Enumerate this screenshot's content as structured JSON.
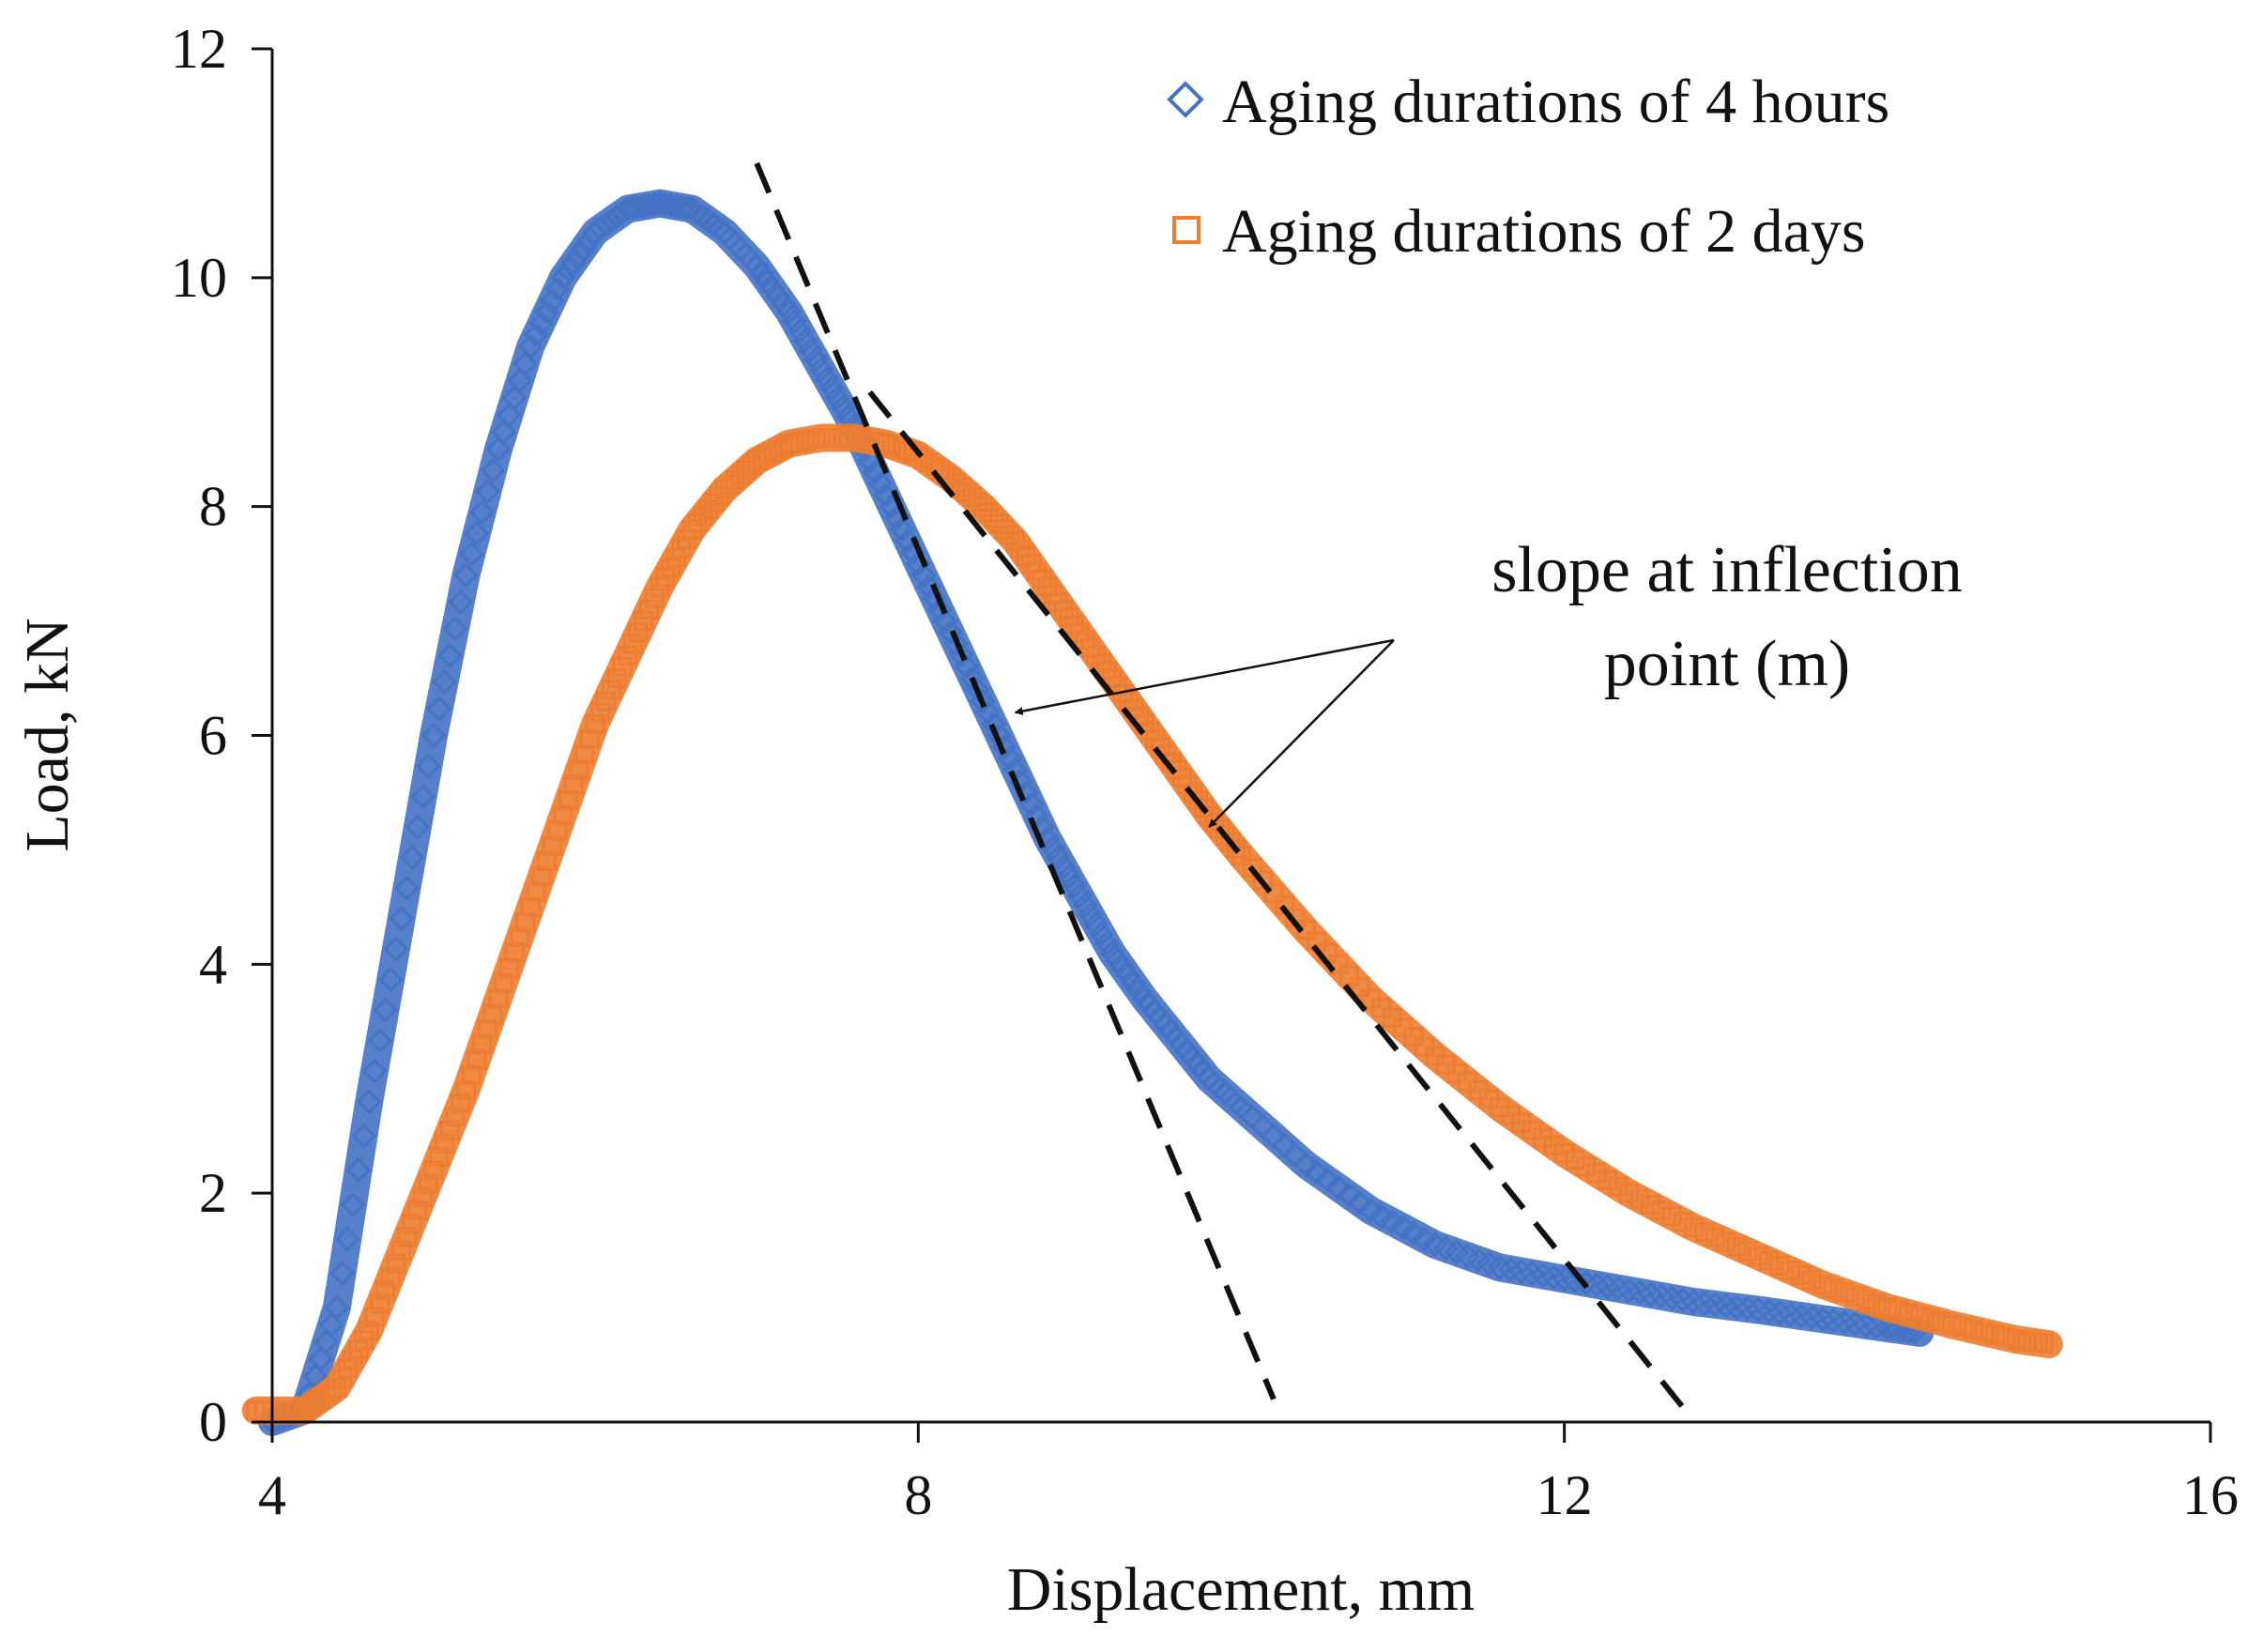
{
  "chart_data": {
    "type": "scatter",
    "title": "",
    "xlabel": "Displacement, mm",
    "ylabel": "Load, kN",
    "xlim": [
      4,
      16
    ],
    "ylim": [
      0,
      12
    ],
    "xticks": [
      4,
      8,
      12,
      16
    ],
    "yticks": [
      0,
      2,
      4,
      6,
      8,
      10,
      12
    ],
    "grid": false,
    "legend_position": "top-right",
    "series": [
      {
        "name": "Aging durations of 4 hours",
        "color": "#4472C4",
        "marker": "diamond-open",
        "x": [
          4.0,
          4.2,
          4.4,
          4.6,
          4.8,
          5.0,
          5.2,
          5.4,
          5.6,
          5.8,
          6.0,
          6.2,
          6.4,
          6.6,
          6.8,
          7.0,
          7.2,
          7.4,
          7.6,
          7.8,
          8.0,
          8.2,
          8.4,
          8.6,
          8.8,
          9.0,
          9.2,
          9.4,
          9.6,
          9.8,
          10.0,
          10.4,
          10.8,
          11.2,
          11.6,
          12.0,
          12.4,
          12.8,
          13.2,
          13.6,
          14.0,
          14.2
        ],
        "y": [
          0.0,
          0.1,
          1.0,
          2.8,
          4.4,
          6.0,
          7.4,
          8.5,
          9.4,
          10.0,
          10.4,
          10.6,
          10.65,
          10.6,
          10.4,
          10.1,
          9.7,
          9.2,
          8.7,
          8.1,
          7.5,
          6.9,
          6.3,
          5.7,
          5.1,
          4.6,
          4.1,
          3.7,
          3.35,
          3.0,
          2.75,
          2.25,
          1.85,
          1.55,
          1.35,
          1.25,
          1.15,
          1.05,
          0.98,
          0.9,
          0.82,
          0.78
        ]
      },
      {
        "name": "Aging durations of 2 days",
        "color": "#ED7D31",
        "marker": "square-open",
        "x": [
          3.9,
          4.2,
          4.4,
          4.6,
          4.8,
          5.0,
          5.2,
          5.4,
          5.6,
          5.8,
          6.0,
          6.2,
          6.4,
          6.6,
          6.8,
          7.0,
          7.2,
          7.4,
          7.6,
          7.8,
          8.0,
          8.2,
          8.4,
          8.6,
          8.8,
          9.0,
          9.2,
          9.4,
          9.6,
          9.8,
          10.0,
          10.4,
          10.8,
          11.2,
          11.6,
          12.0,
          12.4,
          12.8,
          13.2,
          13.6,
          14.0,
          14.4,
          14.8,
          15.0
        ],
        "y": [
          0.1,
          0.1,
          0.3,
          0.8,
          1.5,
          2.2,
          2.9,
          3.7,
          4.5,
          5.3,
          6.1,
          6.7,
          7.3,
          7.8,
          8.15,
          8.4,
          8.55,
          8.6,
          8.6,
          8.55,
          8.45,
          8.25,
          8.0,
          7.7,
          7.3,
          6.9,
          6.5,
          6.1,
          5.7,
          5.3,
          4.95,
          4.3,
          3.7,
          3.2,
          2.75,
          2.35,
          2.0,
          1.7,
          1.45,
          1.2,
          1.0,
          0.85,
          0.72,
          0.68
        ]
      }
    ],
    "tangent_lines": [
      {
        "name": "tangent-4-hours",
        "x": [
          7.0,
          10.2
        ],
        "y": [
          11.0,
          0.2
        ]
      },
      {
        "name": "tangent-2-days",
        "x": [
          7.7,
          12.75
        ],
        "y": [
          9.0,
          0.1
        ]
      }
    ],
    "annotation": {
      "line1": "slope at inflection",
      "line2": "point (m)",
      "arrow_targets": [
        {
          "x": 8.6,
          "y": 6.2
        },
        {
          "x": 9.8,
          "y": 5.2
        }
      ]
    }
  }
}
